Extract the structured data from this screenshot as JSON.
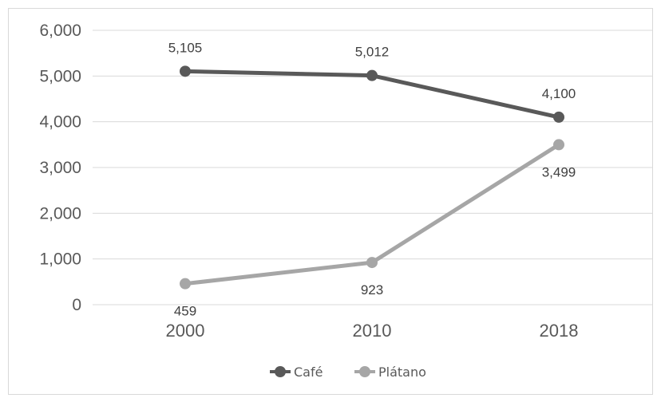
{
  "chart_data": {
    "type": "line",
    "title": "",
    "xlabel": "",
    "ylabel": "",
    "categories": [
      "2000",
      "2010",
      "2018"
    ],
    "ylim": [
      0,
      6000
    ],
    "yticks": [
      "0",
      "1,000",
      "2,000",
      "3,000",
      "4,000",
      "5,000",
      "6,000"
    ],
    "grid": true,
    "legend_position": "bottom",
    "series": [
      {
        "name": "Café",
        "color": "#595959",
        "values": [
          5105,
          5012,
          4100
        ],
        "labels": [
          "5,105",
          "5,012",
          "4,100"
        ],
        "label_position": "above"
      },
      {
        "name": "Plátano",
        "color": "#a6a6a6",
        "values": [
          459,
          923,
          3499
        ],
        "labels": [
          "459",
          "923",
          "3,499"
        ],
        "label_position": "below"
      }
    ]
  }
}
